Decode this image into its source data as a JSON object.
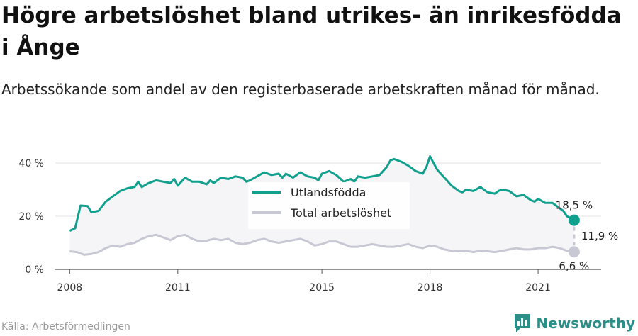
{
  "title": "Högre arbetslöshet bland utrikes- än inrikesfödda i Ånge",
  "subtitle": "Arbetssökande som andel av den registerbaserade arbetskraften månad för månad.",
  "source": "Källa: Arbetsförmedlingen",
  "brand": "Newsworthy",
  "colors": {
    "foreign": "#12a08e",
    "total": "#c8c8d4",
    "gap": "#c8c8d4",
    "brand": "#2a8f86"
  },
  "chart_data": {
    "type": "line",
    "x_label": "",
    "y_label": "",
    "ylim": [
      0,
      46
    ],
    "y_ticks": [
      0,
      20,
      40
    ],
    "y_tick_labels": [
      "0 %",
      "20 %",
      "40 %"
    ],
    "x_ticks": [
      2008,
      2011,
      2015,
      2018,
      2021
    ],
    "x_tick_labels": [
      "2008",
      "2011",
      "2015",
      "2018",
      "2021"
    ],
    "grid": true,
    "legend_position": "center",
    "series": [
      {
        "name": "Utlandsfödda",
        "points": [
          [
            2008.0,
            14.5
          ],
          [
            2008.15,
            15.5
          ],
          [
            2008.3,
            24.0
          ],
          [
            2008.5,
            23.8
          ],
          [
            2008.6,
            21.5
          ],
          [
            2008.8,
            22.0
          ],
          [
            2009.0,
            25.5
          ],
          [
            2009.2,
            27.5
          ],
          [
            2009.4,
            29.5
          ],
          [
            2009.6,
            30.5
          ],
          [
            2009.8,
            31.0
          ],
          [
            2009.9,
            33.0
          ],
          [
            2010.0,
            31.0
          ],
          [
            2010.2,
            32.5
          ],
          [
            2010.4,
            33.5
          ],
          [
            2010.6,
            33.0
          ],
          [
            2010.8,
            32.5
          ],
          [
            2010.9,
            34.0
          ],
          [
            2011.0,
            31.5
          ],
          [
            2011.2,
            34.5
          ],
          [
            2011.4,
            33.0
          ],
          [
            2011.6,
            33.0
          ],
          [
            2011.8,
            32.0
          ],
          [
            2011.9,
            33.5
          ],
          [
            2012.0,
            32.5
          ],
          [
            2012.2,
            34.5
          ],
          [
            2012.4,
            34.0
          ],
          [
            2012.6,
            35.0
          ],
          [
            2012.8,
            34.5
          ],
          [
            2012.9,
            33.0
          ],
          [
            2013.0,
            33.5
          ],
          [
            2013.2,
            35.0
          ],
          [
            2013.4,
            36.5
          ],
          [
            2013.6,
            35.5
          ],
          [
            2013.8,
            36.0
          ],
          [
            2013.9,
            34.5
          ],
          [
            2014.0,
            36.0
          ],
          [
            2014.2,
            34.5
          ],
          [
            2014.4,
            36.5
          ],
          [
            2014.6,
            35.0
          ],
          [
            2014.8,
            34.5
          ],
          [
            2014.9,
            33.5
          ],
          [
            2015.0,
            36.0
          ],
          [
            2015.2,
            37.0
          ],
          [
            2015.4,
            35.5
          ],
          [
            2015.6,
            33.0
          ],
          [
            2015.8,
            34.0
          ],
          [
            2015.9,
            33.0
          ],
          [
            2016.0,
            35.0
          ],
          [
            2016.2,
            34.5
          ],
          [
            2016.4,
            35.0
          ],
          [
            2016.6,
            35.5
          ],
          [
            2016.8,
            38.5
          ],
          [
            2016.9,
            41.0
          ],
          [
            2017.0,
            41.5
          ],
          [
            2017.2,
            40.5
          ],
          [
            2017.4,
            39.0
          ],
          [
            2017.6,
            37.0
          ],
          [
            2017.8,
            36.0
          ],
          [
            2017.9,
            38.5
          ],
          [
            2018.0,
            42.5
          ],
          [
            2018.2,
            37.5
          ],
          [
            2018.4,
            34.5
          ],
          [
            2018.6,
            31.5
          ],
          [
            2018.8,
            29.5
          ],
          [
            2018.9,
            29.0
          ],
          [
            2019.0,
            30.0
          ],
          [
            2019.2,
            29.5
          ],
          [
            2019.4,
            31.0
          ],
          [
            2019.6,
            29.0
          ],
          [
            2019.8,
            28.5
          ],
          [
            2019.9,
            29.5
          ],
          [
            2020.0,
            30.0
          ],
          [
            2020.2,
            29.5
          ],
          [
            2020.4,
            27.5
          ],
          [
            2020.6,
            28.0
          ],
          [
            2020.8,
            26.0
          ],
          [
            2020.9,
            25.5
          ],
          [
            2021.0,
            26.5
          ],
          [
            2021.2,
            25.0
          ],
          [
            2021.4,
            25.0
          ],
          [
            2021.6,
            23.0
          ],
          [
            2021.7,
            22.0
          ],
          [
            2021.8,
            20.0
          ],
          [
            2022.0,
            18.5
          ]
        ]
      },
      {
        "name": "Total arbetslöshet",
        "points": [
          [
            2008.0,
            6.8
          ],
          [
            2008.2,
            6.5
          ],
          [
            2008.4,
            5.5
          ],
          [
            2008.6,
            5.8
          ],
          [
            2008.8,
            6.5
          ],
          [
            2009.0,
            8.0
          ],
          [
            2009.2,
            9.0
          ],
          [
            2009.4,
            8.5
          ],
          [
            2009.6,
            9.5
          ],
          [
            2009.8,
            10.0
          ],
          [
            2010.0,
            11.5
          ],
          [
            2010.2,
            12.5
          ],
          [
            2010.4,
            13.0
          ],
          [
            2010.6,
            12.0
          ],
          [
            2010.8,
            11.0
          ],
          [
            2011.0,
            12.5
          ],
          [
            2011.2,
            13.0
          ],
          [
            2011.4,
            11.5
          ],
          [
            2011.6,
            10.5
          ],
          [
            2011.8,
            10.8
          ],
          [
            2012.0,
            11.5
          ],
          [
            2012.2,
            11.0
          ],
          [
            2012.4,
            11.5
          ],
          [
            2012.6,
            10.0
          ],
          [
            2012.8,
            9.5
          ],
          [
            2013.0,
            10.0
          ],
          [
            2013.2,
            11.0
          ],
          [
            2013.4,
            11.5
          ],
          [
            2013.6,
            10.5
          ],
          [
            2013.8,
            10.0
          ],
          [
            2014.0,
            10.5
          ],
          [
            2014.2,
            11.0
          ],
          [
            2014.4,
            11.5
          ],
          [
            2014.6,
            10.5
          ],
          [
            2014.8,
            9.0
          ],
          [
            2015.0,
            9.5
          ],
          [
            2015.2,
            10.5
          ],
          [
            2015.4,
            10.5
          ],
          [
            2015.6,
            9.5
          ],
          [
            2015.8,
            8.5
          ],
          [
            2016.0,
            8.5
          ],
          [
            2016.2,
            9.0
          ],
          [
            2016.4,
            9.5
          ],
          [
            2016.6,
            9.0
          ],
          [
            2016.8,
            8.5
          ],
          [
            2017.0,
            8.5
          ],
          [
            2017.2,
            9.0
          ],
          [
            2017.4,
            9.5
          ],
          [
            2017.6,
            8.5
          ],
          [
            2017.8,
            8.0
          ],
          [
            2018.0,
            9.0
          ],
          [
            2018.2,
            8.5
          ],
          [
            2018.4,
            7.5
          ],
          [
            2018.6,
            7.0
          ],
          [
            2018.8,
            6.8
          ],
          [
            2019.0,
            7.0
          ],
          [
            2019.2,
            6.5
          ],
          [
            2019.4,
            7.0
          ],
          [
            2019.6,
            6.8
          ],
          [
            2019.8,
            6.5
          ],
          [
            2020.0,
            7.0
          ],
          [
            2020.2,
            7.5
          ],
          [
            2020.4,
            8.0
          ],
          [
            2020.6,
            7.5
          ],
          [
            2020.8,
            7.5
          ],
          [
            2021.0,
            8.0
          ],
          [
            2021.2,
            8.0
          ],
          [
            2021.4,
            8.5
          ],
          [
            2021.6,
            8.0
          ],
          [
            2021.8,
            7.0
          ],
          [
            2022.0,
            6.6
          ]
        ]
      }
    ],
    "end_labels": {
      "foreign": "18,5 %",
      "total": "6,6 %",
      "gap": "11,9 %"
    }
  }
}
